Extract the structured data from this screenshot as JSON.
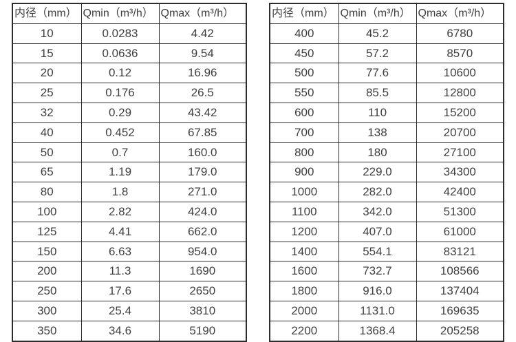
{
  "page": {
    "background": "#ffffff",
    "border_color": "#2d2d2d",
    "text_color": "#3f3f3f"
  },
  "tables": [
    {
      "name": "flow-table-left",
      "headers": [
        "内径（mm）",
        "Qmin（m³/h）",
        "Qmax（m³/h）"
      ],
      "rows": [
        [
          "10",
          "0.0283",
          "4.42"
        ],
        [
          "15",
          "0.0636",
          "9.54"
        ],
        [
          "20",
          "0.12",
          "16.96"
        ],
        [
          "25",
          "0.176",
          "26.5"
        ],
        [
          "32",
          "0.29",
          "43.42"
        ],
        [
          "40",
          "0.452",
          "67.85"
        ],
        [
          "50",
          "0.7",
          "160.0"
        ],
        [
          "65",
          "1.19",
          "179.0"
        ],
        [
          "80",
          "1.8",
          "271.0"
        ],
        [
          "100",
          "2.82",
          "424.0"
        ],
        [
          "125",
          "4.41",
          "662.0"
        ],
        [
          "150",
          "6.63",
          "954.0"
        ],
        [
          "200",
          "11.3",
          "1690"
        ],
        [
          "250",
          "17.6",
          "2650"
        ],
        [
          "300",
          "25.4",
          "3810"
        ],
        [
          "350",
          "34.6",
          "5190"
        ]
      ]
    },
    {
      "name": "flow-table-right",
      "headers": [
        "内径（mm）",
        "Qmin（m³/h）",
        "Qmax（m³/h）"
      ],
      "rows": [
        [
          "400",
          "45.2",
          "6780"
        ],
        [
          "450",
          "57.2",
          "8570"
        ],
        [
          "500",
          "77.6",
          "10600"
        ],
        [
          "550",
          "85.5",
          "12800"
        ],
        [
          "600",
          "110",
          "15200"
        ],
        [
          "700",
          "138",
          "20700"
        ],
        [
          "800",
          "180",
          "27100"
        ],
        [
          "900",
          "229.0",
          "34300"
        ],
        [
          "1000",
          "282.0",
          "42400"
        ],
        [
          "1100",
          "342.0",
          "51300"
        ],
        [
          "1200",
          "407.0",
          "61000"
        ],
        [
          "1400",
          "554.1",
          "83121"
        ],
        [
          "1600",
          "732.7",
          "108566"
        ],
        [
          "1800",
          "916.0",
          "137404"
        ],
        [
          "2000",
          "1131.0",
          "169635"
        ],
        [
          "2200",
          "1368.4",
          "205258"
        ]
      ]
    }
  ]
}
